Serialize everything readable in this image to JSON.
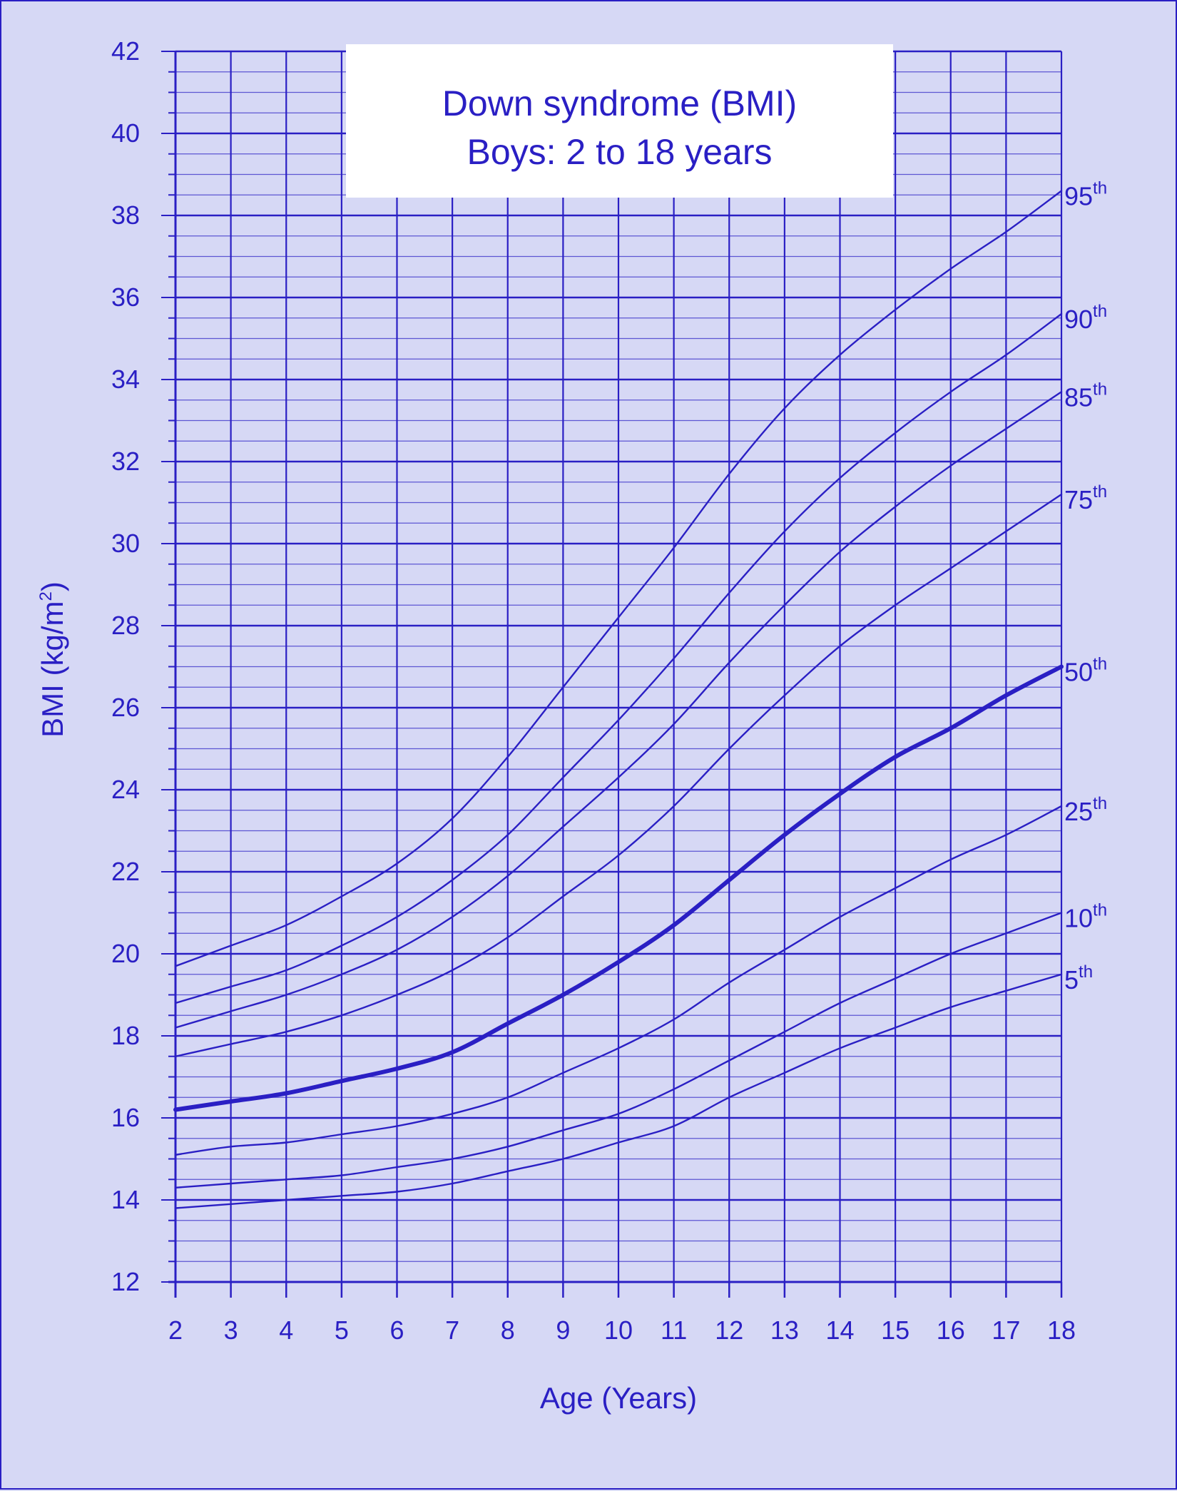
{
  "chart_data": {
    "type": "line",
    "title_line1": "Down syndrome (BMI)",
    "title_line2": "Boys: 2 to 18 years",
    "xlabel": "Age (Years)",
    "ylabel_main": "BMI (kg/m",
    "ylabel_sup": "2",
    "ylabel_close": ")",
    "xlim": [
      2,
      18
    ],
    "ylim": [
      12,
      42
    ],
    "x_ticks": [
      "2",
      "3",
      "4",
      "5",
      "6",
      "7",
      "8",
      "9",
      "10",
      "11",
      "12",
      "13",
      "14",
      "15",
      "16",
      "17",
      "18"
    ],
    "y_ticks": [
      "12",
      "14",
      "16",
      "18",
      "20",
      "22",
      "24",
      "26",
      "28",
      "30",
      "32",
      "34",
      "36",
      "38",
      "40",
      "42"
    ],
    "grid": true,
    "x": [
      2,
      3,
      4,
      5,
      6,
      7,
      8,
      9,
      10,
      11,
      12,
      13,
      14,
      15,
      16,
      17,
      18
    ],
    "series": [
      {
        "name": "95",
        "sup": "th",
        "values": [
          19.7,
          20.2,
          20.7,
          21.4,
          22.2,
          23.3,
          24.8,
          26.5,
          28.2,
          29.9,
          31.7,
          33.3,
          34.6,
          35.7,
          36.7,
          37.6,
          38.6
        ]
      },
      {
        "name": "90",
        "sup": "th",
        "values": [
          18.8,
          19.2,
          19.6,
          20.2,
          20.9,
          21.8,
          22.9,
          24.3,
          25.7,
          27.2,
          28.8,
          30.3,
          31.6,
          32.7,
          33.7,
          34.6,
          35.6
        ]
      },
      {
        "name": "85",
        "sup": "th",
        "values": [
          18.2,
          18.6,
          19.0,
          19.5,
          20.1,
          20.9,
          21.9,
          23.1,
          24.3,
          25.6,
          27.1,
          28.5,
          29.8,
          30.9,
          31.9,
          32.8,
          33.7
        ]
      },
      {
        "name": "75",
        "sup": "th",
        "values": [
          17.5,
          17.8,
          18.1,
          18.5,
          19.0,
          19.6,
          20.4,
          21.4,
          22.4,
          23.6,
          25.0,
          26.3,
          27.5,
          28.5,
          29.4,
          30.3,
          31.2
        ]
      },
      {
        "name": "50",
        "sup": "th",
        "values": [
          16.2,
          16.4,
          16.6,
          16.9,
          17.2,
          17.6,
          18.3,
          19.0,
          19.8,
          20.7,
          21.8,
          22.9,
          23.9,
          24.8,
          25.5,
          26.3,
          27.0
        ]
      },
      {
        "name": "25",
        "sup": "th",
        "values": [
          15.1,
          15.3,
          15.4,
          15.6,
          15.8,
          16.1,
          16.5,
          17.1,
          17.7,
          18.4,
          19.3,
          20.1,
          20.9,
          21.6,
          22.3,
          22.9,
          23.6
        ]
      },
      {
        "name": "10",
        "sup": "th",
        "values": [
          14.3,
          14.4,
          14.5,
          14.6,
          14.8,
          15.0,
          15.3,
          15.7,
          16.1,
          16.7,
          17.4,
          18.1,
          18.8,
          19.4,
          20.0,
          20.5,
          21.0
        ]
      },
      {
        "name": "5",
        "sup": "th",
        "values": [
          13.8,
          13.9,
          14.0,
          14.1,
          14.2,
          14.4,
          14.7,
          15.0,
          15.4,
          15.8,
          16.5,
          17.1,
          17.7,
          18.2,
          18.7,
          19.1,
          19.5
        ]
      }
    ],
    "highlight_series": "50",
    "colors": {
      "ink": "#2a1fc4",
      "background": "#d6d8f5",
      "title_box": "#ffffff"
    }
  }
}
